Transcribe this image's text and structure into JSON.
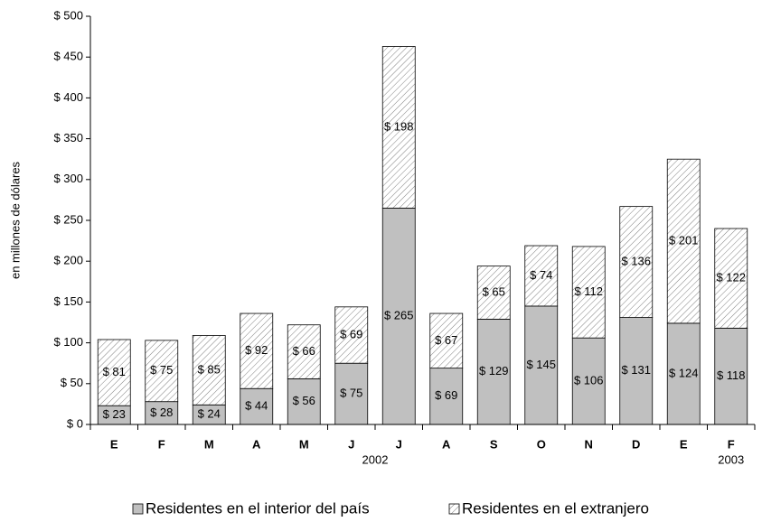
{
  "chart_data": {
    "type": "stacked_bar",
    "y_label": "en millones de dólares",
    "categories": [
      "E",
      "F",
      "M",
      "A",
      "M",
      "J",
      "J",
      "A",
      "S",
      "O",
      "N",
      "D",
      "E",
      "F"
    ],
    "year_labels": [
      "2002",
      "2003"
    ],
    "series": [
      {
        "name": "Residentes en el interior del país",
        "color": "#c0c0c0",
        "values": [
          23,
          28,
          24,
          44,
          56,
          75,
          265,
          69,
          129,
          145,
          106,
          131,
          124,
          118
        ],
        "value_labels": [
          "$ 23",
          "$ 28",
          "$ 24",
          "$ 44",
          "$ 56",
          "$ 75",
          "$ 265",
          "$ 69",
          "$ 129",
          "$ 145",
          "$ 106",
          "$ 131",
          "$ 124",
          "$ 118"
        ]
      },
      {
        "name": "Residentes en el extranjero",
        "color": "hatch",
        "values": [
          81,
          75,
          85,
          92,
          66,
          69,
          198,
          67,
          65,
          74,
          112,
          136,
          201,
          122
        ],
        "value_labels": [
          "$ 81",
          "$ 75",
          "$ 85",
          "$ 92",
          "$ 66",
          "$ 69",
          "$ 198",
          "$ 67",
          "$ 65",
          "$ 74",
          "$ 112",
          "$ 136",
          "$ 201",
          "$ 122"
        ]
      }
    ],
    "ylim": [
      0,
      500
    ],
    "yticks": [
      {
        "value": 0,
        "label": "$ 0"
      },
      {
        "value": 50,
        "label": "$ 50"
      },
      {
        "value": 100,
        "label": "$ 100"
      },
      {
        "value": 150,
        "label": "$ 150"
      },
      {
        "value": 200,
        "label": "$ 200"
      },
      {
        "value": 250,
        "label": "$ 250"
      },
      {
        "value": 300,
        "label": "$ 300"
      },
      {
        "value": 350,
        "label": "$ 350"
      },
      {
        "value": 400,
        "label": "$ 400"
      },
      {
        "value": 450,
        "label": "$ 450"
      },
      {
        "value": 500,
        "label": "$ 500"
      }
    ],
    "grid": false
  }
}
